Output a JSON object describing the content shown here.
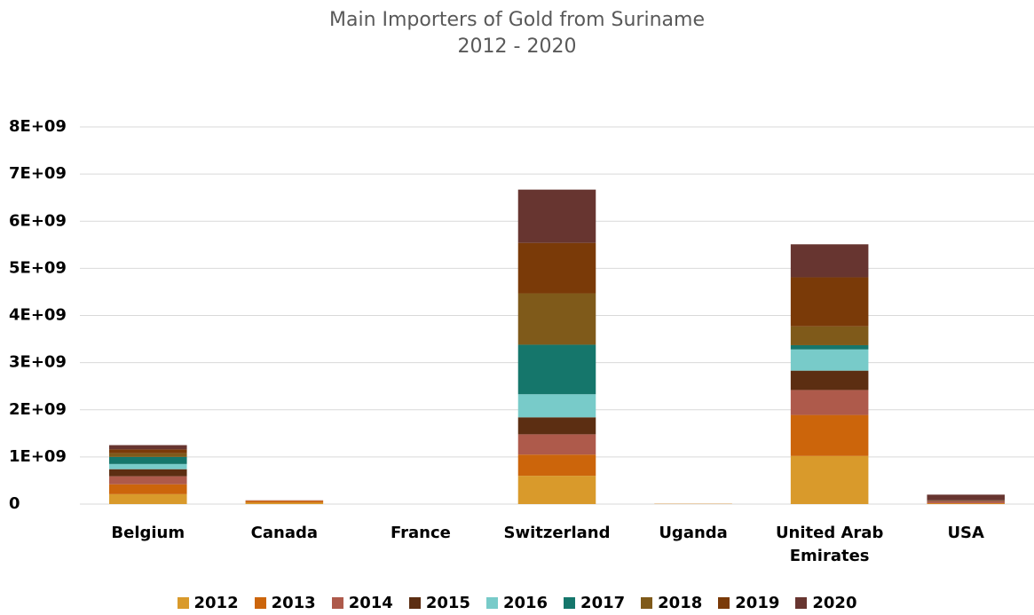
{
  "chart_data": {
    "type": "stacked_bar",
    "title": "Main Importers of Gold from Suriname",
    "subtitle": "2012 - 2020",
    "categories": [
      "Belgium",
      "Canada",
      "France",
      "Switzerland",
      "Uganda",
      "United Arab Emirates",
      "USA"
    ],
    "series": [
      {
        "name": "2012",
        "color": "#D99A2B",
        "values": [
          210000000,
          30000000,
          0,
          600000000,
          5000000,
          1020000000,
          10000000
        ]
      },
      {
        "name": "2013",
        "color": "#CC650B",
        "values": [
          210000000,
          40000000,
          0,
          450000000,
          3000000,
          870000000,
          10000000
        ]
      },
      {
        "name": "2014",
        "color": "#AE5A4B",
        "values": [
          170000000,
          10000000,
          0,
          430000000,
          0,
          530000000,
          40000000
        ]
      },
      {
        "name": "2015",
        "color": "#5C2E12",
        "values": [
          150000000,
          0,
          0,
          360000000,
          0,
          410000000,
          10000000
        ]
      },
      {
        "name": "2016",
        "color": "#78CBC9",
        "values": [
          110000000,
          0,
          0,
          490000000,
          0,
          450000000,
          0
        ]
      },
      {
        "name": "2017",
        "color": "#15766B",
        "values": [
          150000000,
          0,
          0,
          1050000000,
          0,
          90000000,
          0
        ]
      },
      {
        "name": "2018",
        "color": "#7F5A1A",
        "values": [
          80000000,
          0,
          0,
          1090000000,
          0,
          400000000,
          0
        ]
      },
      {
        "name": "2019",
        "color": "#7A3A08",
        "values": [
          80000000,
          0,
          0,
          1070000000,
          0,
          1040000000,
          10000000
        ]
      },
      {
        "name": "2020",
        "color": "#673530",
        "values": [
          90000000,
          0,
          0,
          1130000000,
          0,
          700000000,
          120000000
        ]
      }
    ],
    "ylim": [
      0,
      8000000000
    ],
    "yticks": [
      0,
      {
        "value": 1000000000,
        "label": "1E+09"
      },
      {
        "value": 2000000000,
        "label": "2E+09"
      },
      {
        "value": 3000000000,
        "label": "3E+09"
      },
      {
        "value": 4000000000,
        "label": "4E+09"
      },
      {
        "value": 5000000000,
        "label": "5E+09"
      },
      {
        "value": 6000000000,
        "label": "6E+09"
      },
      {
        "value": 7000000000,
        "label": "7E+09"
      },
      {
        "value": 8000000000,
        "label": "8E+09"
      }
    ],
    "grid": true,
    "legend": "bottom"
  }
}
